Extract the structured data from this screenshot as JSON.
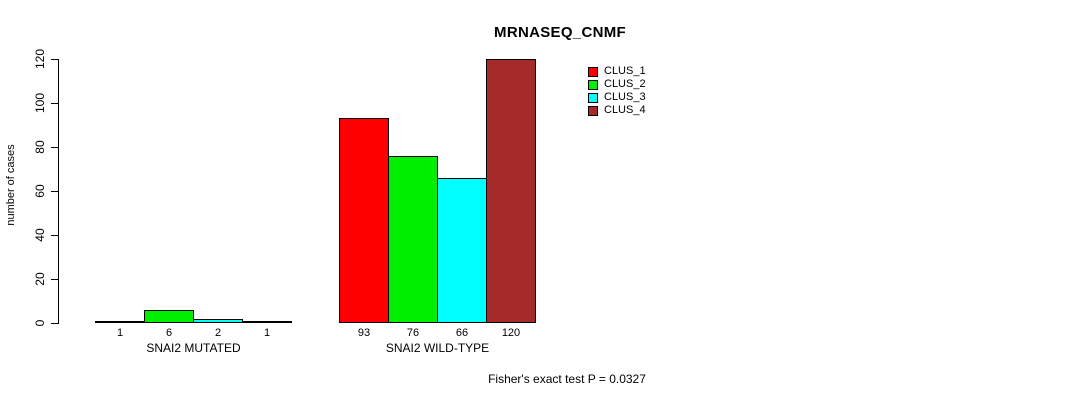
{
  "chart_data": {
    "type": "bar",
    "title": "MRNASEQ_CNMF",
    "xlabel": "",
    "ylabel": "number of cases",
    "ylim": [
      0,
      120
    ],
    "yticks": [
      0,
      20,
      40,
      60,
      80,
      100,
      120
    ],
    "grid": false,
    "legend_position": "top-right",
    "bar_value_labels_shown": true,
    "categories": [
      "SNAI2 MUTATED",
      "SNAI2 WILD-TYPE"
    ],
    "series": [
      {
        "name": "CLUS_1",
        "color": "#ff0000",
        "values": [
          1,
          93
        ]
      },
      {
        "name": "CLUS_2",
        "color": "#00ee00",
        "values": [
          6,
          76
        ]
      },
      {
        "name": "CLUS_3",
        "color": "#00ffff",
        "values": [
          2,
          66
        ]
      },
      {
        "name": "CLUS_4",
        "color": "#a52a2a",
        "values": [
          1,
          120
        ]
      }
    ]
  },
  "footer": {
    "note": "Fisher's exact test P = 0.0327"
  }
}
